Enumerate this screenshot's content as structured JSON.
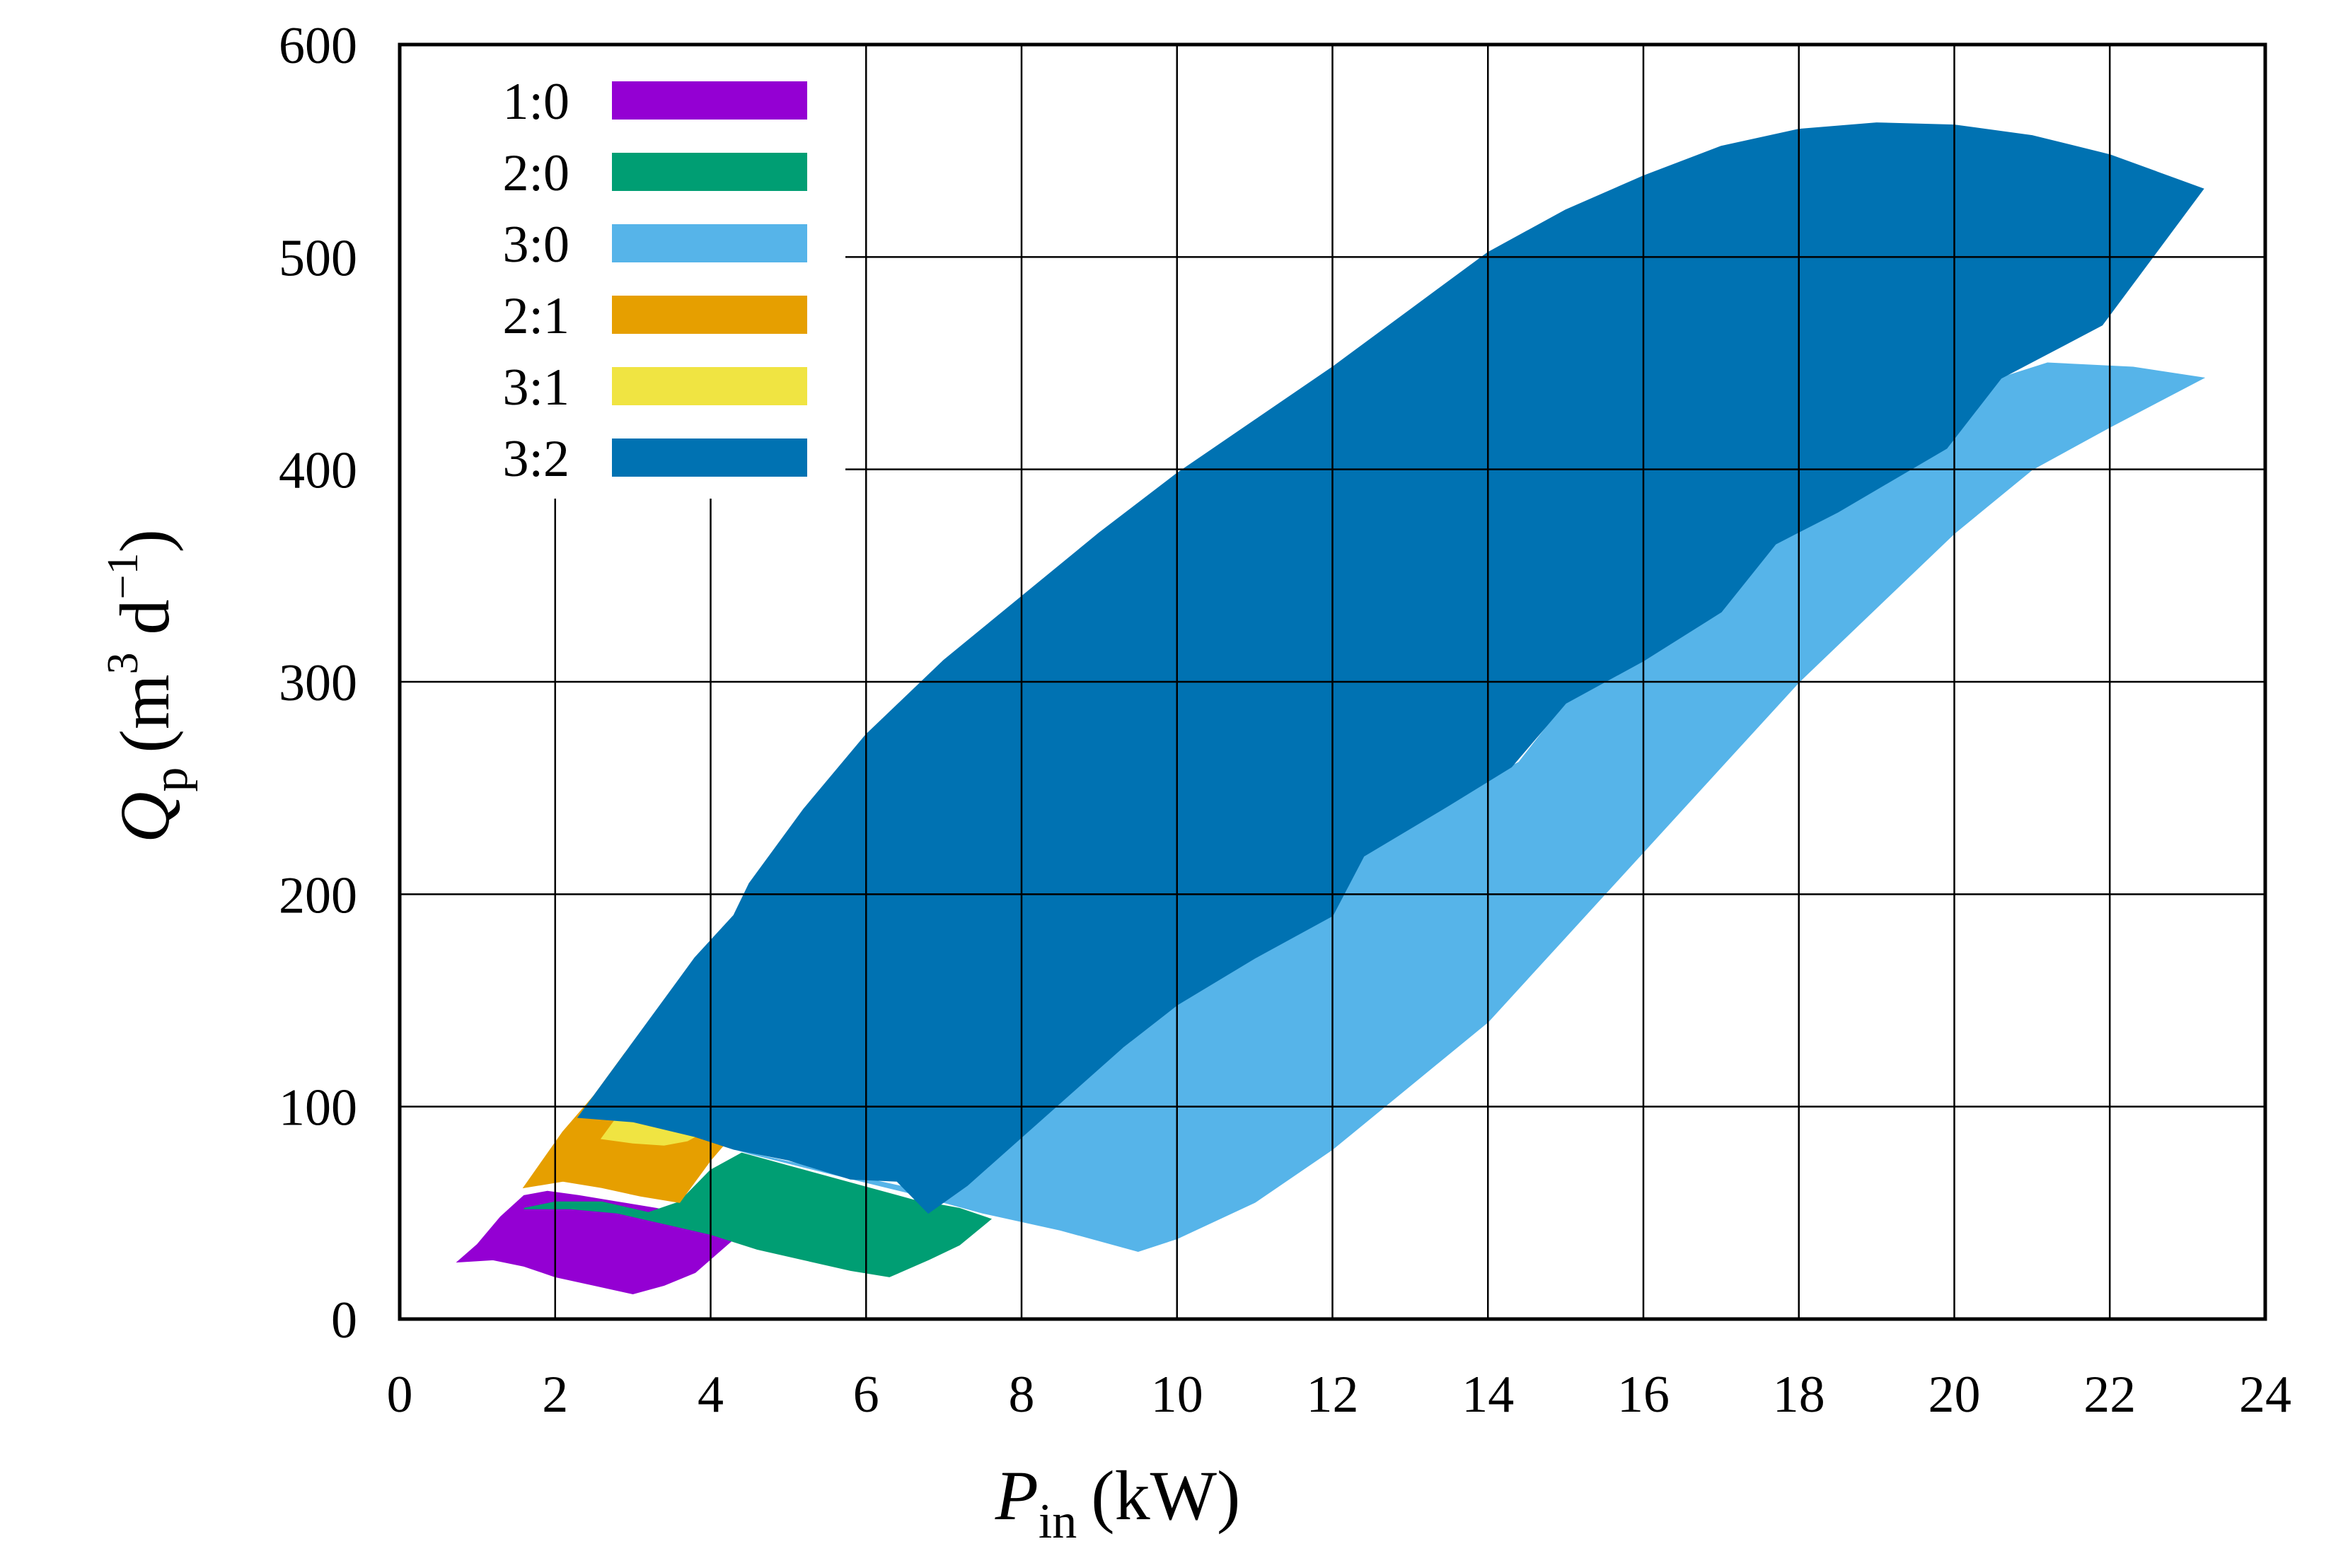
{
  "chart_data": {
    "type": "area",
    "title": "",
    "xlabel": {
      "symbol": "P",
      "subscript": "in",
      "unit": "(kW)"
    },
    "ylabel": {
      "symbol": "Q",
      "subscript": "p",
      "unit_open": "(m",
      "unit_sup1": "3",
      "unit_mid": " d",
      "unit_sup2": "−1",
      "unit_close": ")"
    },
    "xlim": [
      0,
      24
    ],
    "ylim": [
      0,
      600
    ],
    "xticks": [
      0,
      2,
      4,
      6,
      8,
      10,
      12,
      14,
      16,
      18,
      20,
      22,
      24
    ],
    "yticks": [
      0,
      100,
      200,
      300,
      400,
      500,
      600
    ],
    "grid": true,
    "legend_position": "top-left",
    "series": [
      {
        "name": "1:0",
        "color": "#9400d3",
        "upper": [
          [
            0.75,
            27
          ],
          [
            1.0,
            35
          ],
          [
            1.3,
            48
          ],
          [
            1.6,
            58
          ],
          [
            1.9,
            60
          ],
          [
            2.3,
            58
          ],
          [
            2.8,
            55
          ],
          [
            3.3,
            52
          ],
          [
            3.8,
            48
          ],
          [
            4.3,
            38
          ]
        ],
        "lower": [
          [
            0.75,
            27
          ],
          [
            1.2,
            28
          ],
          [
            1.6,
            25
          ],
          [
            2.0,
            20
          ],
          [
            2.5,
            16
          ],
          [
            3.0,
            12
          ],
          [
            3.4,
            16
          ],
          [
            3.8,
            22
          ],
          [
            4.3,
            38
          ]
        ]
      },
      {
        "name": "2:0",
        "color": "#009e73",
        "upper": [
          [
            1.6,
            52
          ],
          [
            2.0,
            55
          ],
          [
            2.6,
            55
          ],
          [
            3.2,
            50
          ],
          [
            3.6,
            55
          ],
          [
            4.0,
            70
          ],
          [
            4.4,
            78
          ],
          [
            5.0,
            72
          ],
          [
            5.8,
            64
          ],
          [
            6.6,
            56
          ],
          [
            7.2,
            52
          ],
          [
            7.6,
            47
          ]
        ],
        "lower": [
          [
            1.6,
            52
          ],
          [
            2.2,
            52
          ],
          [
            2.8,
            50
          ],
          [
            3.4,
            45
          ],
          [
            4.0,
            40
          ],
          [
            4.6,
            33
          ],
          [
            5.2,
            28
          ],
          [
            5.8,
            23
          ],
          [
            6.3,
            20
          ],
          [
            6.8,
            28
          ],
          [
            7.2,
            35
          ],
          [
            7.6,
            47
          ]
        ]
      },
      {
        "name": "3:0",
        "color": "#56b4e9",
        "upper": [
          [
            3.6,
            88
          ],
          [
            4.5,
            78
          ],
          [
            5.5,
            70
          ],
          [
            6.5,
            62
          ],
          [
            6.8,
            52
          ],
          [
            7.0,
            62
          ],
          [
            9.4,
            130
          ],
          [
            10.0,
            150
          ],
          [
            11.0,
            170
          ],
          [
            12.0,
            190
          ],
          [
            12.4,
            220
          ],
          [
            13.5,
            245
          ],
          [
            14.4,
            262
          ],
          [
            15.0,
            290
          ],
          [
            17.0,
            335
          ],
          [
            17.7,
            365
          ],
          [
            19.9,
            410
          ],
          [
            20.6,
            443
          ],
          [
            21.2,
            450
          ],
          [
            22.3,
            448
          ],
          [
            23.2,
            443
          ]
        ],
        "lower": [
          [
            3.6,
            88
          ],
          [
            4.5,
            78
          ],
          [
            5.6,
            68
          ],
          [
            6.5,
            60
          ],
          [
            7.5,
            50
          ],
          [
            8.5,
            42
          ],
          [
            9.2,
            35
          ],
          [
            9.5,
            32
          ],
          [
            10.0,
            38
          ],
          [
            11.0,
            55
          ],
          [
            12.0,
            80
          ],
          [
            13.0,
            110
          ],
          [
            14.0,
            140
          ],
          [
            15.0,
            180
          ],
          [
            16.0,
            220
          ],
          [
            17.0,
            260
          ],
          [
            18.0,
            300
          ],
          [
            19.0,
            335
          ],
          [
            20.0,
            370
          ],
          [
            21.0,
            400
          ],
          [
            22.0,
            420
          ],
          [
            23.2,
            443
          ]
        ]
      },
      {
        "name": "2:1",
        "color": "#e69f00",
        "upper": [
          [
            1.6,
            62
          ],
          [
            2.1,
            88
          ],
          [
            2.5,
            105
          ],
          [
            2.9,
            125
          ],
          [
            3.2,
            135
          ],
          [
            3.5,
            125
          ],
          [
            3.9,
            105
          ],
          [
            4.4,
            92
          ]
        ],
        "lower": [
          [
            1.6,
            62
          ],
          [
            2.1,
            65
          ],
          [
            2.6,
            62
          ],
          [
            3.1,
            58
          ],
          [
            3.6,
            55
          ],
          [
            4.0,
            75
          ],
          [
            4.4,
            92
          ]
        ]
      },
      {
        "name": "3:1",
        "color": "#f0e442",
        "upper": [
          [
            2.6,
            85
          ],
          [
            2.8,
            95
          ],
          [
            3.2,
            97
          ],
          [
            3.6,
            94
          ],
          [
            4.0,
            90
          ]
        ],
        "lower": [
          [
            2.6,
            85
          ],
          [
            3.0,
            83
          ],
          [
            3.4,
            82
          ],
          [
            3.7,
            84
          ],
          [
            4.0,
            90
          ]
        ]
      },
      {
        "name": "3:2",
        "color": "#0072b2",
        "upper": [
          [
            2.3,
            95
          ],
          [
            3.0,
            130
          ],
          [
            3.5,
            155
          ],
          [
            3.8,
            170
          ],
          [
            4.3,
            190
          ],
          [
            4.5,
            205
          ],
          [
            5.2,
            240
          ],
          [
            6.0,
            275
          ],
          [
            7.0,
            310
          ],
          [
            8.0,
            340
          ],
          [
            9.0,
            370
          ],
          [
            10.0,
            398
          ],
          [
            11.0,
            423
          ],
          [
            12.0,
            448
          ],
          [
            13.0,
            475
          ],
          [
            14.0,
            502
          ],
          [
            15.0,
            522
          ],
          [
            16.0,
            538
          ],
          [
            17.0,
            552
          ],
          [
            18.0,
            560
          ],
          [
            19.0,
            563
          ],
          [
            20.0,
            562
          ],
          [
            21.0,
            557
          ],
          [
            22.0,
            548
          ],
          [
            23.2,
            532
          ]
        ],
        "lower": [
          [
            2.3,
            95
          ],
          [
            3.0,
            93
          ],
          [
            3.8,
            86
          ],
          [
            4.3,
            80
          ],
          [
            5.0,
            75
          ],
          [
            5.8,
            66
          ],
          [
            6.4,
            65
          ],
          [
            6.8,
            50
          ],
          [
            7.3,
            63
          ],
          [
            9.3,
            128
          ],
          [
            10.0,
            148
          ],
          [
            11.0,
            170
          ],
          [
            12.0,
            190
          ],
          [
            12.4,
            218
          ],
          [
            13.5,
            242
          ],
          [
            14.3,
            260
          ],
          [
            15.0,
            290
          ],
          [
            16.0,
            310
          ],
          [
            17.0,
            333
          ],
          [
            17.7,
            365
          ],
          [
            18.5,
            380
          ],
          [
            19.9,
            410
          ],
          [
            20.6,
            443
          ],
          [
            21.9,
            468
          ],
          [
            23.2,
            532
          ]
        ]
      }
    ]
  }
}
